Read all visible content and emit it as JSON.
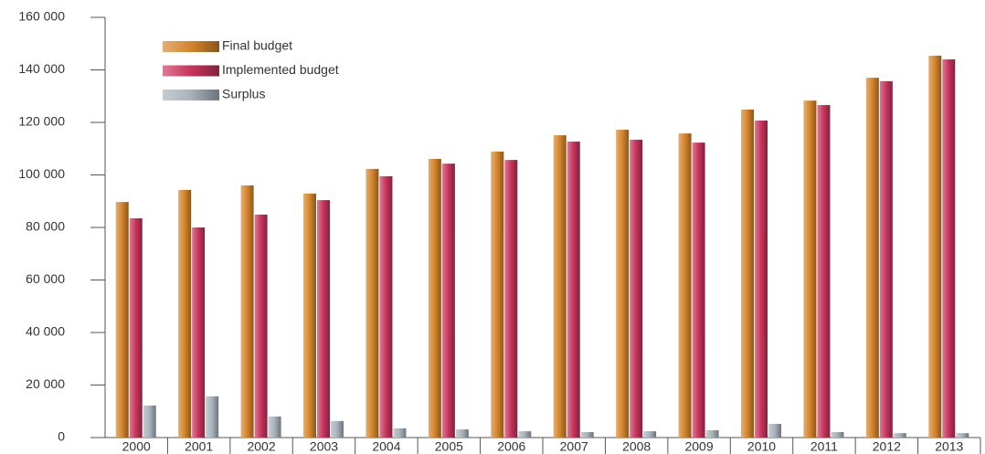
{
  "chart_data": {
    "type": "bar",
    "categories": [
      "2000",
      "2001",
      "2002",
      "2003",
      "2004",
      "2005",
      "2006",
      "2007",
      "2008",
      "2009",
      "2010",
      "2011",
      "2012",
      "2013"
    ],
    "series": [
      {
        "name": "Final budget",
        "color": "#d4842a",
        "values": [
          89700,
          94300,
          96000,
          92900,
          102300,
          106100,
          108900,
          115100,
          117200,
          115800,
          124900,
          128300,
          137000,
          145400
        ]
      },
      {
        "name": "Implemented budget",
        "color": "#c7345c",
        "values": [
          83500,
          80000,
          84900,
          90400,
          99500,
          104300,
          105700,
          112700,
          113400,
          112300,
          120700,
          126600,
          135700,
          144000
        ]
      },
      {
        "name": "Surplus",
        "color": "#a7b2bb",
        "values": [
          12200,
          15700,
          8000,
          6300,
          3500,
          3100,
          2400,
          2100,
          2400,
          2800,
          5200,
          2100,
          1700,
          1700
        ]
      }
    ],
    "ylim": [
      0,
      160000
    ],
    "yticks": [
      {
        "value": 0,
        "label": "0"
      },
      {
        "value": 20000,
        "label": "20 000"
      },
      {
        "value": 40000,
        "label": "40 000"
      },
      {
        "value": 60000,
        "label": "60 000"
      },
      {
        "value": 80000,
        "label": "80 000"
      },
      {
        "value": 100000,
        "label": "100 000"
      },
      {
        "value": 120000,
        "label": "120 000"
      },
      {
        "value": 140000,
        "label": "140 000"
      },
      {
        "value": 160000,
        "label": "160 000"
      }
    ],
    "legend": "top-left"
  }
}
